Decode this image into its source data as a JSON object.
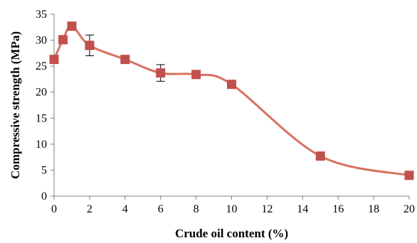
{
  "chart_data": {
    "type": "line",
    "title": "",
    "xlabel": "Crude oil content (%)",
    "ylabel": "Compressive strength (MPa)",
    "xlim": [
      0,
      20
    ],
    "ylim": [
      0,
      35
    ],
    "x_ticks": [
      0,
      2,
      4,
      6,
      8,
      10,
      12,
      14,
      16,
      18,
      20
    ],
    "y_ticks": [
      0,
      5,
      10,
      15,
      20,
      25,
      30,
      35
    ],
    "x_tick_labels": [
      "0",
      "2",
      "4",
      "6",
      "8",
      "10",
      "12",
      "14",
      "16",
      "18",
      "20"
    ],
    "y_tick_labels": [
      "0",
      "5",
      "10",
      "15",
      "20",
      "25",
      "30",
      "35"
    ],
    "grid": false,
    "legend": "none",
    "smooth": true,
    "marker": "square",
    "series": [
      {
        "color": "#c0504d",
        "line_color": "#d9705f",
        "x": [
          0,
          0.5,
          1,
          2,
          4,
          6,
          8,
          10,
          15,
          20
        ],
        "y": [
          26.3,
          30.1,
          32.7,
          29.0,
          26.3,
          23.7,
          23.4,
          21.5,
          7.7,
          4.0
        ],
        "error": [
          0,
          0,
          0,
          2.0,
          0,
          1.6,
          0,
          0,
          0,
          0
        ]
      }
    ]
  }
}
